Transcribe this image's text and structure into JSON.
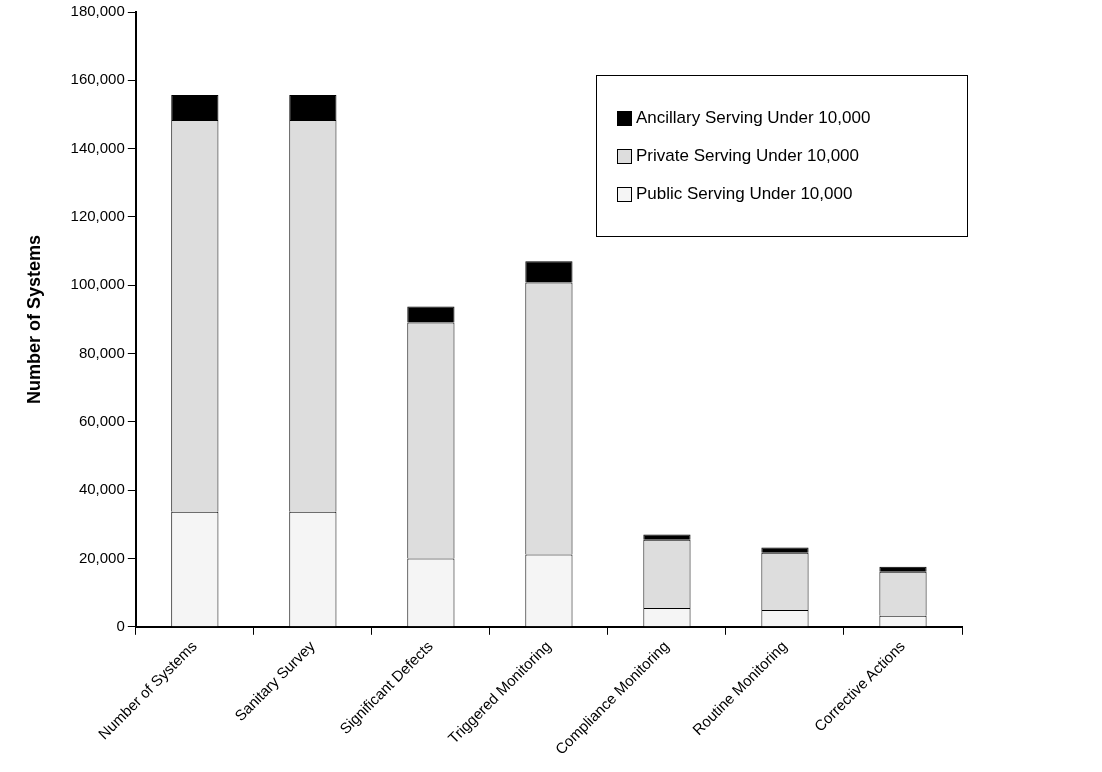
{
  "chart_data": {
    "type": "bar",
    "ylabel": "Number of Systems",
    "stacked": true,
    "grid": false,
    "legend": "top right",
    "categories": [
      "Number of Systems",
      "Sanitary Survey",
      "Significant Defects",
      "Triggered Monitoring",
      "Compliance Monitoring",
      "Routine Monitoring",
      "Corrective Actions"
    ],
    "ylim": [
      0,
      180000
    ],
    "yticks": [
      0,
      {
        "value": 20000,
        "label": "20,000"
      },
      {
        "value": 40000,
        "label": "40,000"
      },
      {
        "value": 60000,
        "label": "60,000"
      },
      {
        "value": 80000,
        "label": "80,000"
      },
      {
        "value": 100000,
        "label": "100,000"
      },
      {
        "value": 120000,
        "label": "120,000"
      },
      {
        "value": 140000,
        "label": "140,000"
      },
      {
        "value": 160000,
        "label": "160,000"
      },
      {
        "value": 180000,
        "label": "180,000"
      }
    ],
    "series": [
      {
        "name": "Public Serving Under 10,000",
        "color": "#f5f5f5",
        "values": [
          33700,
          33700,
          20000,
          21200,
          5500,
          4900,
          3200
        ]
      },
      {
        "name": "Private Serving Under 10,000",
        "color": "#dddddd",
        "values": [
          114700,
          114700,
          69100,
          79600,
          20000,
          16800,
          12900
        ]
      },
      {
        "name": "Ancillary Serving Under 10,000",
        "color": "#000000",
        "values": [
          7300,
          7300,
          4700,
          6200,
          1500,
          1500,
          1500
        ]
      }
    ]
  }
}
